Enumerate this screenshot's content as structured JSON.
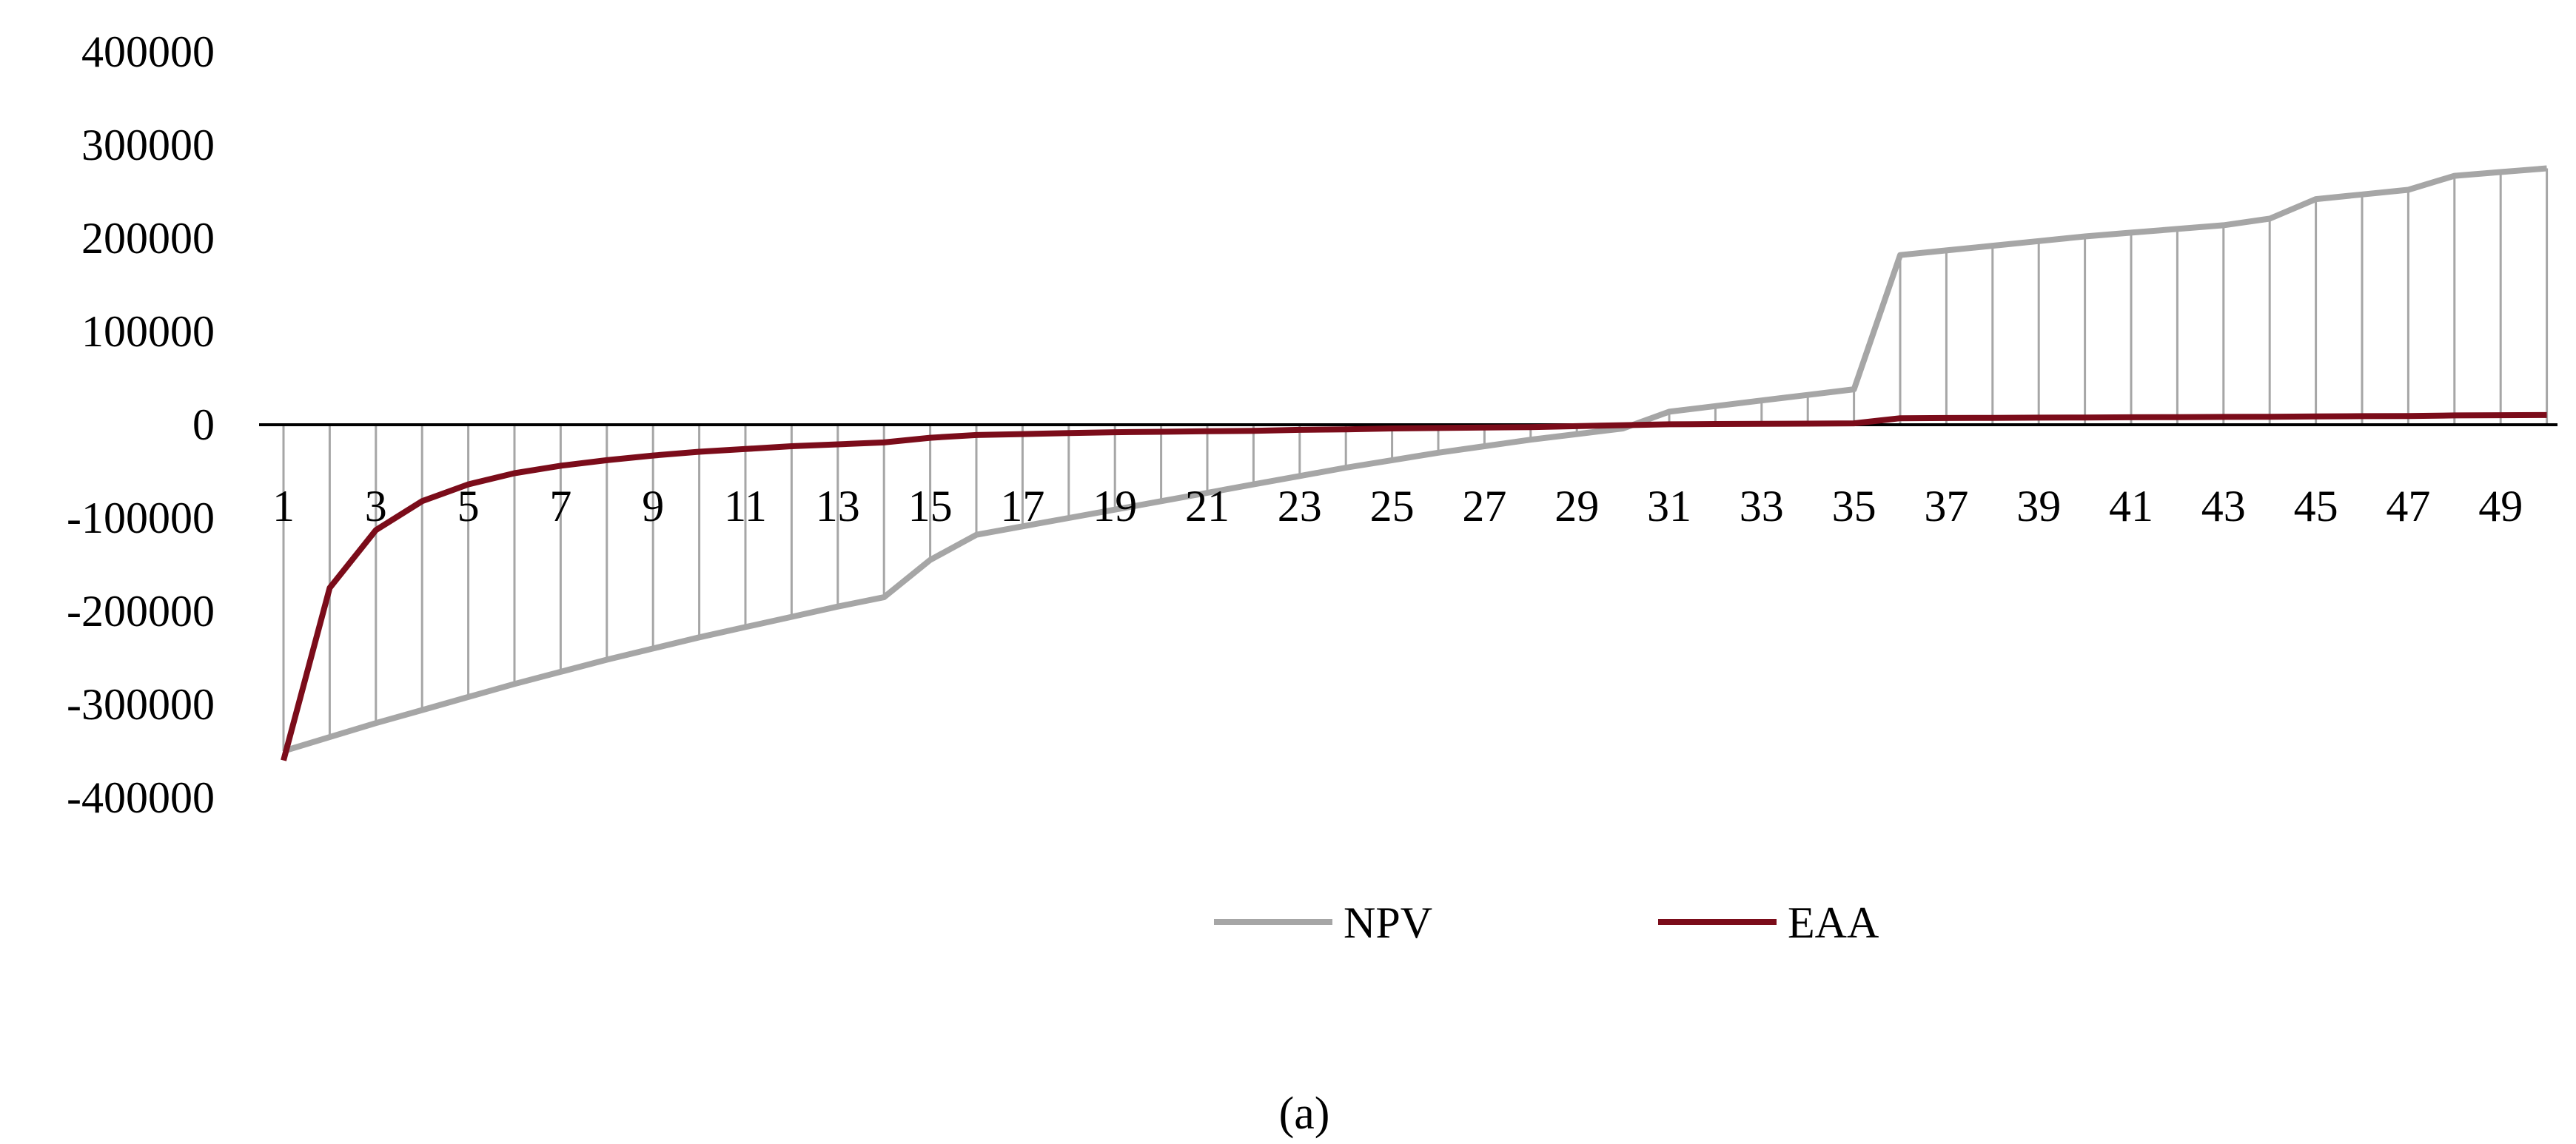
{
  "chart_data": {
    "type": "line",
    "x": [
      1,
      2,
      3,
      4,
      5,
      6,
      7,
      8,
      9,
      10,
      11,
      12,
      13,
      14,
      15,
      16,
      17,
      18,
      19,
      20,
      21,
      22,
      23,
      24,
      25,
      26,
      27,
      28,
      29,
      30,
      31,
      32,
      33,
      34,
      35,
      36,
      37,
      38,
      39,
      40,
      41,
      42,
      43,
      44,
      45,
      46,
      47,
      48,
      49,
      50
    ],
    "x_tick_labels": [
      "1",
      "3",
      "5",
      "7",
      "9",
      "11",
      "13",
      "15",
      "17",
      "19",
      "21",
      "23",
      "25",
      "27",
      "29",
      "31",
      "33",
      "35",
      "37",
      "39",
      "41",
      "43",
      "45",
      "47",
      "49"
    ],
    "y_tick_labels": [
      "400000",
      "300000",
      "200000",
      "100000",
      "0",
      "-100000",
      "-200000",
      "-300000",
      "-400000"
    ],
    "ylim": [
      -400000,
      400000
    ],
    "series": [
      {
        "name": "NPV",
        "color": "#a6a6a6",
        "drop_lines": true,
        "values": [
          -350000,
          -335000,
          -320000,
          -306000,
          -292000,
          -278000,
          -265000,
          -252000,
          -240000,
          -228000,
          -217000,
          -206000,
          -195000,
          -185000,
          -145000,
          -118000,
          -109000,
          -100000,
          -91000,
          -82000,
          -73000,
          -64000,
          -55000,
          -46000,
          -38000,
          -30000,
          -23000,
          -16000,
          -10000,
          -4000,
          14000,
          20000,
          26000,
          32000,
          38000,
          182000,
          187000,
          192000,
          197000,
          202000,
          206000,
          210000,
          214000,
          221000,
          242000,
          247000,
          252000,
          267000,
          271000,
          275000
        ]
      },
      {
        "name": "EAA",
        "color": "#7b0c1a",
        "drop_lines": false,
        "values": [
          -360000,
          -175000,
          -113000,
          -82000,
          -64000,
          -52000,
          -44000,
          -38000,
          -33000,
          -29000,
          -26000,
          -23000,
          -21000,
          -19000,
          -14000,
          -11000,
          -10000,
          -9000,
          -8000,
          -7500,
          -7000,
          -6500,
          -5500,
          -5000,
          -4000,
          -3500,
          -3000,
          -2500,
          -1500,
          -500,
          500,
          800,
          1000,
          1200,
          1500,
          7000,
          7200,
          7400,
          7600,
          7800,
          8000,
          8200,
          8400,
          8600,
          9000,
          9200,
          9400,
          10000,
          10200,
          10400
        ]
      }
    ]
  },
  "caption": "(a)"
}
